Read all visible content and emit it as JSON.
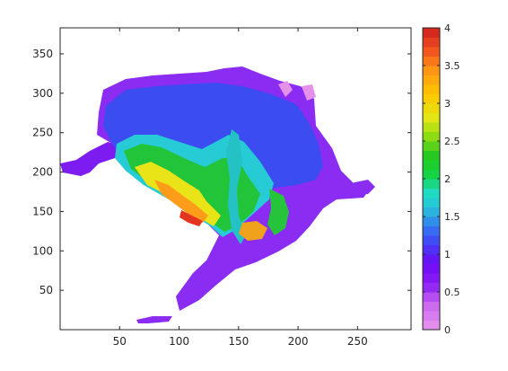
{
  "chart_data": {
    "type": "heatmap",
    "title": "",
    "xlabel": "",
    "ylabel": "",
    "xlim": [
      0,
      295
    ],
    "ylim": [
      0,
      383
    ],
    "x_ticks": [
      50,
      100,
      150,
      200,
      250
    ],
    "x_tick_labels": [
      "50",
      "100",
      "150",
      "200",
      "250"
    ],
    "y_ticks": [
      50,
      100,
      150,
      200,
      250,
      300,
      350
    ],
    "y_tick_labels": [
      "50",
      "100",
      "150",
      "200",
      "250",
      "300",
      "350"
    ],
    "grid": false,
    "colormap": "hsv-like filled contour (violet → blue → cyan → green → yellow → orange → red)",
    "colorbar": {
      "range": [
        0,
        4
      ],
      "ticks": [
        0,
        0.5,
        1,
        1.5,
        2,
        2.5,
        3,
        3.5,
        4
      ],
      "tick_labels": [
        "0",
        "0.5",
        "1",
        "1.5",
        "2",
        "2.5",
        "3",
        "3.5",
        "4"
      ],
      "levels": 32
    },
    "colors": {
      "low": "#e28fe8",
      "mid_low": "#7a14f0",
      "mid": "#2ad1d0",
      "mid_high": "#1bc81b",
      "high_mid": "#ffd200",
      "high": "#d81e1e"
    }
  }
}
